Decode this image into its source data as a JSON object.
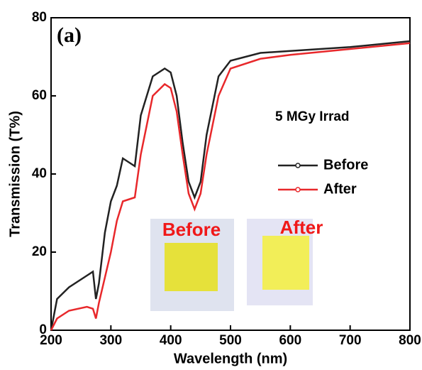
{
  "chart_data": {
    "type": "line",
    "panel_label": "(a)",
    "annotation": "5 MGy Irrad",
    "inset_labels": [
      "Before",
      "After"
    ],
    "x_label": "Wavelength (nm)",
    "y_label": "Transmission (T%)",
    "xlim": [
      200,
      800
    ],
    "ylim": [
      0,
      80
    ],
    "xticks": [
      200,
      300,
      400,
      500,
      600,
      700,
      800
    ],
    "yticks": [
      0,
      20,
      40,
      60,
      80
    ],
    "legend": "right",
    "series": [
      {
        "name": "Before",
        "color": "#222222",
        "x": [
          200,
          210,
          230,
          260,
          270,
          275,
          280,
          290,
          300,
          310,
          320,
          330,
          340,
          350,
          370,
          390,
          400,
          410,
          420,
          430,
          440,
          450,
          460,
          480,
          500,
          550,
          600,
          700,
          800
        ],
        "values": [
          0,
          8,
          11,
          14,
          15,
          8,
          12,
          25,
          33,
          37,
          44,
          43,
          42,
          55,
          65,
          67,
          66,
          60,
          48,
          38,
          34,
          38,
          50,
          65,
          69,
          71,
          71.5,
          72.5,
          74
        ]
      },
      {
        "name": "After",
        "color": "#e8282b",
        "x": [
          200,
          210,
          230,
          260,
          270,
          275,
          280,
          300,
          310,
          320,
          330,
          340,
          350,
          370,
          390,
          400,
          410,
          420,
          430,
          440,
          450,
          460,
          480,
          500,
          550,
          600,
          700,
          800
        ],
        "values": [
          0,
          3,
          5,
          6,
          5.5,
          3,
          7,
          20,
          28,
          33,
          33.5,
          34,
          45,
          60,
          63,
          62,
          56,
          45,
          35,
          31,
          35,
          45,
          60,
          67,
          69.5,
          70.5,
          72,
          73.5
        ]
      }
    ]
  }
}
